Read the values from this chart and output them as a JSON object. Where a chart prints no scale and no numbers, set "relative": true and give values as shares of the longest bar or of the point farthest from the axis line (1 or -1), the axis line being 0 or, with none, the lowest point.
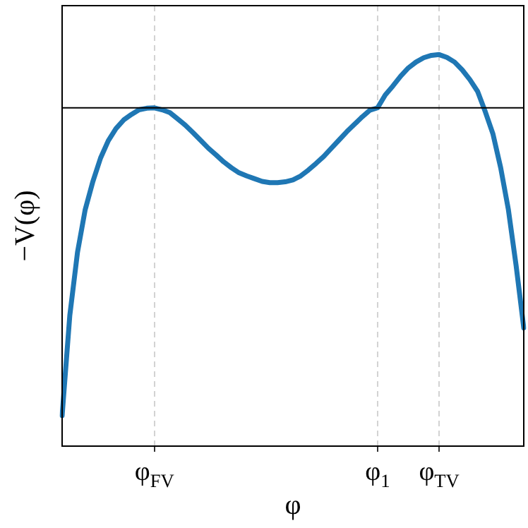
{
  "chart_data": {
    "type": "line",
    "relative": true,
    "xlabel": "φ",
    "ylabel": "−V(φ)",
    "categories": [
      null,
      null,
      null,
      null,
      null,
      null,
      null,
      null,
      null,
      null,
      null,
      null,
      "φ$_{FV}$",
      null,
      null,
      null,
      null,
      null,
      null,
      null,
      null,
      null,
      null,
      null,
      null,
      null,
      null,
      null,
      null,
      null,
      null,
      null,
      null,
      null,
      null,
      null,
      null,
      null,
      null,
      null,
      null,
      "φ$_{1}$",
      null,
      null,
      null,
      null,
      null,
      null,
      null,
      "φ$_{TV}$",
      null,
      null,
      null,
      null,
      null,
      null,
      null,
      null,
      null,
      null,
      null
    ],
    "grid": "x",
    "marker": "none",
    "ref_lines": [
      {
        "axis": "y",
        "value": 0.864,
        "color": "#000000"
      }
    ],
    "series": [
      {
        "color": "#1f77b4",
        "values": [
          0.078,
          0.334,
          0.495,
          0.604,
          0.676,
          0.736,
          0.78,
          0.811,
          0.833,
          0.847,
          0.859,
          0.863,
          0.864,
          0.859,
          0.852,
          0.836,
          0.82,
          0.801,
          0.781,
          0.761,
          0.744,
          0.726,
          0.711,
          0.698,
          0.69,
          0.683,
          0.676,
          0.673,
          0.673,
          0.675,
          0.68,
          0.69,
          0.705,
          0.722,
          0.74,
          0.761,
          0.782,
          0.803,
          0.822,
          0.841,
          0.858,
          0.864,
          0.897,
          0.92,
          0.945,
          0.966,
          0.981,
          0.992,
          0.998,
          1,
          0.993,
          0.981,
          0.961,
          0.936,
          0.906,
          0.854,
          0.797,
          0.711,
          0.604,
          0.462,
          0.302
        ]
      }
    ]
  }
}
